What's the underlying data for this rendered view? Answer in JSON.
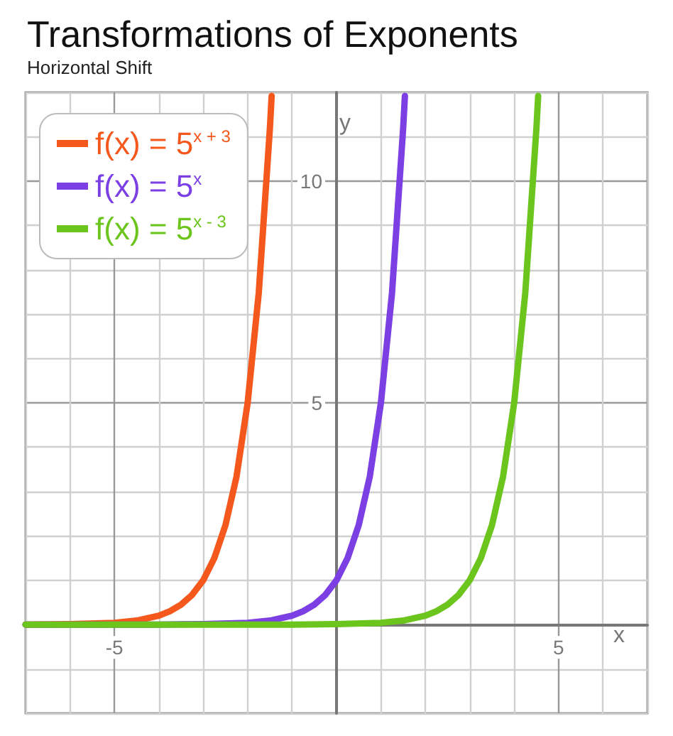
{
  "chart_data": {
    "type": "line",
    "title": "Transformations of Exponents",
    "subtitle": "Horizontal Shift",
    "xlabel": "x",
    "ylabel": "y",
    "xlim": [
      -7,
      7
    ],
    "ylim": [
      -2,
      12
    ],
    "xticks": [
      {
        "value": -7,
        "label": null
      },
      {
        "value": -6,
        "label": null
      },
      {
        "value": -5,
        "label": "-5"
      },
      {
        "value": -4,
        "label": null
      },
      {
        "value": -3,
        "label": null
      },
      {
        "value": -2,
        "label": null
      },
      {
        "value": -1,
        "label": null
      },
      {
        "value": 0,
        "label": null
      },
      {
        "value": 1,
        "label": null
      },
      {
        "value": 2,
        "label": null
      },
      {
        "value": 3,
        "label": null
      },
      {
        "value": 4,
        "label": null
      },
      {
        "value": 5,
        "label": "5"
      },
      {
        "value": 6,
        "label": null
      },
      {
        "value": 7,
        "label": null
      }
    ],
    "yticks": [
      {
        "value": -2,
        "label": null
      },
      {
        "value": -1,
        "label": null
      },
      {
        "value": 0,
        "label": null
      },
      {
        "value": 1,
        "label": null
      },
      {
        "value": 2,
        "label": null
      },
      {
        "value": 3,
        "label": null
      },
      {
        "value": 4,
        "label": null
      },
      {
        "value": 5,
        "label": "5"
      },
      {
        "value": 6,
        "label": null
      },
      {
        "value": 7,
        "label": null
      },
      {
        "value": 8,
        "label": null
      },
      {
        "value": 9,
        "label": null
      },
      {
        "value": 10,
        "label": "10"
      },
      {
        "value": 11,
        "label": null
      },
      {
        "value": 12,
        "label": null
      }
    ],
    "grid": true,
    "legend": "top left",
    "marker": "none",
    "line_style": "solid",
    "series": [
      {
        "name": "f(x) = 5$^{x + 3}$",
        "color": "#f4581c",
        "x": [
          -7,
          -6,
          -5,
          -4.5,
          -4,
          -3.75,
          -3.5,
          -3.25,
          -3,
          -2.75,
          -2.5,
          -2.25,
          -2,
          -1.75,
          -1.5,
          -1.46
        ],
        "values": [
          0.0,
          0.01,
          0.04,
          0.09,
          0.2,
          0.3,
          0.45,
          0.67,
          1.0,
          1.5,
          2.24,
          3.34,
          5.0,
          7.48,
          11.18,
          11.92
        ]
      },
      {
        "name": "f(x) = 5$^{x}$",
        "color": "#7b3fe4",
        "x": [
          -7,
          -4,
          -3,
          -2,
          -1.5,
          -1,
          -0.75,
          -0.5,
          -0.25,
          0,
          0.25,
          0.5,
          0.75,
          1,
          1.25,
          1.5,
          1.54
        ],
        "values": [
          0.0,
          0.0,
          0.01,
          0.04,
          0.09,
          0.2,
          0.3,
          0.45,
          0.67,
          1.0,
          1.5,
          2.24,
          3.34,
          5.0,
          7.48,
          11.18,
          11.92
        ]
      },
      {
        "name": "f(x) = 5$^{x - 3}$",
        "color": "#6cc51d",
        "x": [
          -7,
          -1,
          0,
          1,
          1.5,
          2,
          2.25,
          2.5,
          2.75,
          3,
          3.25,
          3.5,
          3.75,
          4,
          4.25,
          4.5,
          4.54
        ],
        "values": [
          0.0,
          0.0,
          0.01,
          0.04,
          0.09,
          0.2,
          0.3,
          0.45,
          0.67,
          1.0,
          1.5,
          2.24,
          3.34,
          5.0,
          7.48,
          11.18,
          11.92
        ]
      }
    ]
  }
}
